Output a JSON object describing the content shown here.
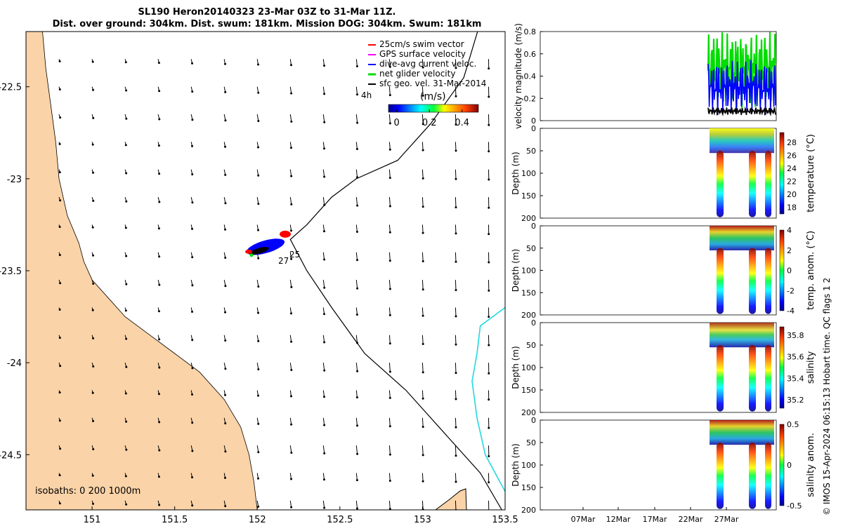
{
  "title": {
    "line1": "SL190 Heron20140323 23-Mar 03Z to 31-Mar 11Z.",
    "line2": "Dist. over ground: 304km. Dist. swum: 181km. Mission DOG: 304km. Swum: 181km"
  },
  "credit": "© IMOS 15-Apr-2024 06:15:13 Hobart time. QC flags 1  2",
  "colors": {
    "land": "#fad3a8",
    "track": "#000000",
    "isobath": "#22d8e0",
    "swim": "#ff0000",
    "gps": "#ff00ff",
    "diveavg": "#0000ff",
    "net": "#00dd00",
    "geo": "#000000"
  },
  "chart_data": [
    {
      "type": "map",
      "xlim": [
        150.6,
        153.5
      ],
      "ylim": [
        -24.8,
        -22.2
      ],
      "xticks": [
        "151",
        "151.5",
        "152",
        "152.5",
        "153",
        "153.5"
      ],
      "yticks": [
        "-22.5",
        "-23",
        "-23.5",
        "-24",
        "-24.5"
      ],
      "legend": {
        "placement": "top-right",
        "entries": [
          "25cm/s swim vector",
          "GPS surface velocity",
          "dive-avg current veloc.",
          "net glider velocity",
          "sfc geo. vel. 31-Mar-2014"
        ],
        "time_label": "4h"
      },
      "colorbar": {
        "label": "(m/s)",
        "ticks": [
          "0",
          "0.2",
          "0.4"
        ],
        "range": [
          -0.05,
          0.5
        ]
      },
      "isobaths_label": "isobaths: 0   200  1000m",
      "glider_labels": [
        "25",
        "27"
      ],
      "glider_cluster_center": [
        152.05,
        -23.37
      ],
      "track_lonlat": [
        [
          153.35,
          -22.15
        ],
        [
          153.25,
          -22.45
        ],
        [
          153.05,
          -22.7
        ],
        [
          152.85,
          -22.9
        ],
        [
          152.6,
          -23.0
        ],
        [
          152.45,
          -23.1
        ],
        [
          152.3,
          -23.25
        ],
        [
          152.2,
          -23.33
        ],
        [
          152.3,
          -23.5
        ],
        [
          152.45,
          -23.7
        ],
        [
          152.65,
          -23.95
        ],
        [
          152.9,
          -24.15
        ],
        [
          153.15,
          -24.4
        ],
        [
          153.35,
          -24.6
        ],
        [
          153.48,
          -24.8
        ]
      ],
      "isobath_1000m_lonlat": [
        [
          153.5,
          -23.7
        ],
        [
          153.35,
          -23.8
        ],
        [
          153.33,
          -23.95
        ],
        [
          153.3,
          -24.1
        ],
        [
          153.33,
          -24.3
        ],
        [
          153.38,
          -24.5
        ],
        [
          153.5,
          -24.7
        ]
      ],
      "coast_lonlat": [
        [
          150.6,
          -22.05
        ],
        [
          150.7,
          -22.2
        ],
        [
          150.72,
          -22.4
        ],
        [
          150.75,
          -22.6
        ],
        [
          150.78,
          -22.8
        ],
        [
          150.8,
          -23.0
        ],
        [
          150.85,
          -23.2
        ],
        [
          150.92,
          -23.35
        ],
        [
          150.95,
          -23.45
        ],
        [
          151.0,
          -23.55
        ],
        [
          151.1,
          -23.65
        ],
        [
          151.2,
          -23.75
        ],
        [
          151.35,
          -23.85
        ],
        [
          151.5,
          -23.95
        ],
        [
          151.65,
          -24.05
        ],
        [
          151.8,
          -24.2
        ],
        [
          151.9,
          -24.35
        ],
        [
          151.95,
          -24.5
        ],
        [
          151.98,
          -24.65
        ],
        [
          152.0,
          -24.8
        ]
      ],
      "vectors": {
        "lons": [
          150.8,
          151.0,
          151.2,
          151.4,
          151.6,
          151.8,
          152.0,
          152.2,
          152.4,
          152.6,
          152.8,
          153.0,
          153.2,
          153.4
        ],
        "lats": [
          -22.35,
          -22.5,
          -22.65,
          -22.8,
          -22.95,
          -23.1,
          -23.25,
          -23.4,
          -23.55,
          -23.7,
          -23.85,
          -24.0,
          -24.15,
          -24.3,
          -24.45,
          -24.6,
          -24.75
        ]
      }
    },
    {
      "type": "line",
      "ylabel": "velocity magnitude (m/s)",
      "ylim": [
        0,
        0.8
      ],
      "yticks": [
        "0",
        "0.2",
        "0.4",
        "0.6",
        "0.8"
      ],
      "series": [
        {
          "color": "#00dd00",
          "values_range": [
            0.1,
            0.8
          ]
        },
        {
          "color": "#0000ff",
          "values_range": [
            0.05,
            0.55
          ]
        },
        {
          "color": "#000000",
          "values_range": [
            0.05,
            0.12
          ]
        }
      ]
    },
    {
      "type": "heatmap",
      "ylabel": "Depth (m)",
      "ylim": [
        0,
        200
      ],
      "yticks": [
        "0",
        "50",
        "100",
        "150",
        "200"
      ],
      "colorbar_label": "temperature (°C)",
      "colorbar_ticks": [
        "28",
        "26",
        "24",
        "22",
        "20",
        "18"
      ],
      "colorbar_range": [
        17,
        29.5
      ]
    },
    {
      "type": "heatmap",
      "ylabel": "Depth (m)",
      "ylim": [
        0,
        200
      ],
      "yticks": [
        "0",
        "50",
        "100",
        "150",
        "200"
      ],
      "colorbar_label": "temp. anom. (°C)",
      "colorbar_ticks": [
        "4",
        "2",
        "0",
        "-2",
        "-4"
      ],
      "colorbar_range": [
        -4,
        4
      ]
    },
    {
      "type": "heatmap",
      "ylabel": "Depth (m)",
      "ylim": [
        0,
        200
      ],
      "yticks": [
        "0",
        "50",
        "100",
        "150",
        "200"
      ],
      "colorbar_label": "salinity",
      "colorbar_ticks": [
        "35.8",
        "35.6",
        "35.4",
        "35.2"
      ],
      "colorbar_range": [
        35.12,
        35.88
      ]
    },
    {
      "type": "heatmap",
      "ylabel": "Depth (m)",
      "ylim": [
        0,
        200
      ],
      "yticks": [
        "0",
        "50",
        "100",
        "150",
        "200"
      ],
      "colorbar_label": "salinity anom.",
      "colorbar_ticks": [
        "0.5",
        "0",
        "-0.5"
      ],
      "colorbar_range": [
        -0.5,
        0.5
      ],
      "xticks": [
        "07Mar",
        "12Mar",
        "17Mar",
        "22Mar",
        "27Mar"
      ]
    }
  ]
}
